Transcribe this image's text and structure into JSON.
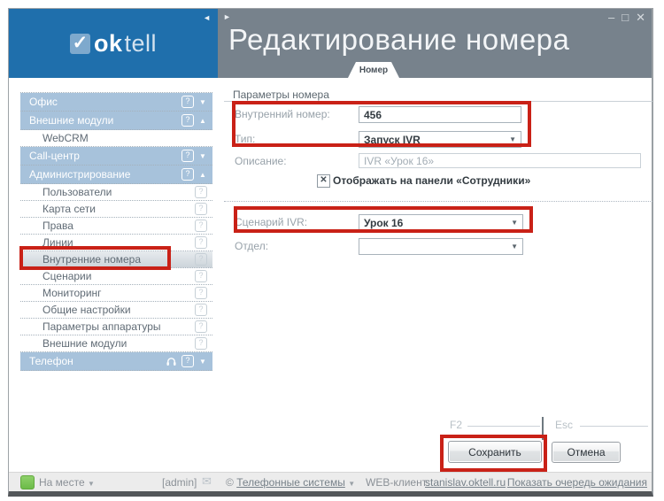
{
  "colors": {
    "sidebar_header_blue": "#1f6fac",
    "main_header_gray": "#77828c",
    "menu_section_blue": "#a7c2db",
    "annotation_red": "#c92117",
    "presence_green": "#7cc85c"
  },
  "window": {
    "minimize_icon": "–",
    "maximize_icon": "□",
    "close_icon": "✕",
    "sidebar_collapse_arrow": "◄",
    "panel_expand_arrow": "►"
  },
  "logo": {
    "check": "✓",
    "bold": "ok",
    "light": "tell"
  },
  "header": {
    "title": "Редактирование номера",
    "tab": "Номер"
  },
  "icons": {
    "dropdown": "▼",
    "status_caret": "▼",
    "help": "?",
    "envelope": "✉"
  },
  "sidebar": {
    "menu": [
      {
        "label": "Офис",
        "type": "section",
        "help": true,
        "arrow": "▼"
      },
      {
        "label": "Внешние модули",
        "type": "section",
        "help": true,
        "arrow": "▲"
      },
      {
        "label": "WebCRM",
        "type": "sub",
        "help": false
      },
      {
        "label": "Call-центр",
        "type": "section",
        "help": true,
        "arrow": "▼"
      },
      {
        "label": "Администрирование",
        "type": "section",
        "help": true,
        "arrow": "▲"
      },
      {
        "label": "Пользователи",
        "type": "sub",
        "help": true
      },
      {
        "label": "Карта сети",
        "type": "sub",
        "help": true
      },
      {
        "label": "Права",
        "type": "sub",
        "help": true
      },
      {
        "label": "Линии",
        "type": "sub",
        "help": true
      },
      {
        "label": "Внутренние номера",
        "type": "sub",
        "help": true,
        "selected": true
      },
      {
        "label": "Сценарии",
        "type": "sub",
        "help": true
      },
      {
        "label": "Мониторинг",
        "type": "sub",
        "help": true
      },
      {
        "label": "Общие настройки",
        "type": "sub",
        "help": true
      },
      {
        "label": "Параметры аппаратуры",
        "type": "sub",
        "help": true
      },
      {
        "label": "Внешние модули",
        "type": "sub",
        "help": true
      },
      {
        "label": "Телефон",
        "type": "section",
        "help": true,
        "arrow": "▼",
        "headset": true
      }
    ]
  },
  "form": {
    "group_title": "Параметры номера",
    "internal_number": {
      "label": "Внутренний номер:",
      "value": "456"
    },
    "type": {
      "label": "Тип:",
      "value": "Запуск IVR"
    },
    "description": {
      "label": "Описание:",
      "value": "IVR «Урок 16»"
    },
    "show_on_panel": {
      "label": "Отображать на панели «Сотрудники»",
      "checked": true,
      "check_glyph": "✕"
    },
    "ivr_script": {
      "label": "Сценарий IVR:",
      "value": "Урок 16"
    },
    "department": {
      "label": "Отдел:",
      "value": ""
    }
  },
  "actions": {
    "save_hotkey": "F2",
    "save_label": "Сохранить",
    "cancel_hotkey": "Esc",
    "cancel_label": "Отмена"
  },
  "statusbar": {
    "presence_label": "На месте",
    "user": "[admin]",
    "copyright_sign": "©",
    "company": "Телефонные системы",
    "webclient_label": "WEB-клиент:",
    "webclient_value": "stanislav.oktell.ru",
    "queue_label": "Показать очередь ожидания"
  }
}
